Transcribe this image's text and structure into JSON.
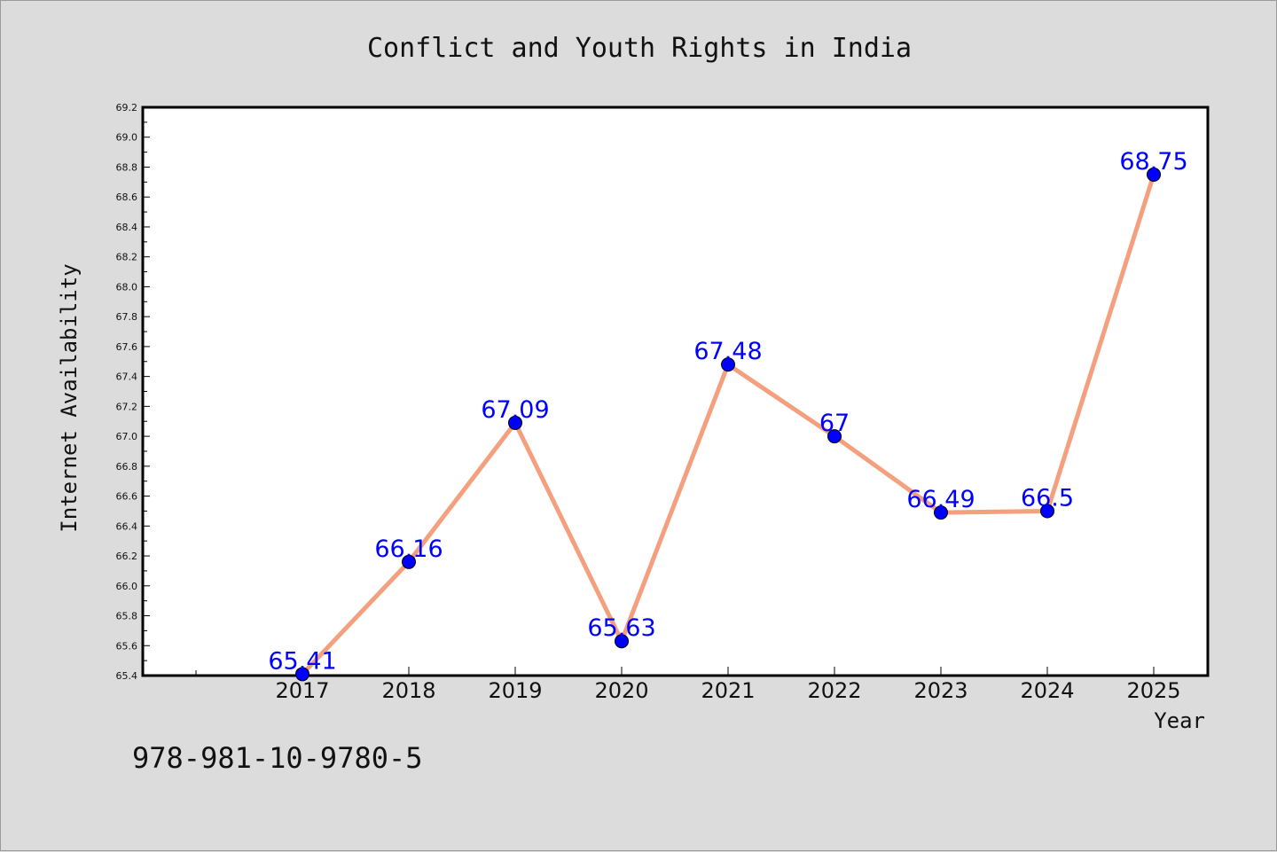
{
  "chart_data": {
    "type": "line",
    "title": "Conflict and Youth Rights in India",
    "xlabel": "Year",
    "ylabel": "Internet Availability",
    "categories": [
      "2017",
      "2018",
      "2019",
      "2020",
      "2021",
      "2022",
      "2023",
      "2024",
      "2025"
    ],
    "series": [
      {
        "values": [
          65.41,
          66.16,
          67.09,
          65.63,
          67.48,
          67,
          66.49,
          66.5,
          68.75
        ],
        "labels": [
          "65.41",
          "66.16",
          "67.09",
          "65.63",
          "67.48",
          "67",
          "66.49",
          "66.5",
          "68.75"
        ],
        "line_color": "#f4a07e",
        "marker_color": "#0000ff"
      }
    ],
    "ylim": [
      65.4,
      69.2
    ],
    "yticks": [
      "65.4",
      "65.6",
      "65.8",
      "66.0",
      "66.2",
      "66.4",
      "66.6",
      "66.8",
      "67.0",
      "67.2",
      "67.4",
      "67.6",
      "67.8",
      "68.0",
      "68.2",
      "68.4",
      "68.6",
      "68.8",
      "69.0",
      "69.2"
    ],
    "grid": false,
    "legend": false
  },
  "footer": {
    "isbn": "978-981-10-9780-5"
  },
  "colors": {
    "background": "#dcdcdc",
    "plot_background": "#ffffff",
    "axis": "#000000"
  }
}
